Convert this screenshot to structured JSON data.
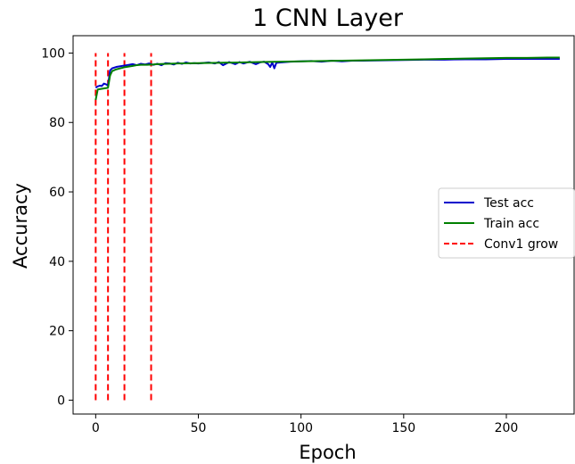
{
  "chart_data": {
    "type": "line",
    "title": "1 CNN Layer",
    "xlabel": "Epoch",
    "ylabel": "Accuracy",
    "xlim": [
      -11,
      233
    ],
    "ylim": [
      -4,
      105
    ],
    "xticks": [
      0,
      50,
      100,
      150,
      200
    ],
    "yticks": [
      0,
      20,
      40,
      60,
      80,
      100
    ],
    "legend_position": "center-right",
    "series": [
      {
        "name": "Test acc",
        "color": "#0000cc",
        "style": "solid",
        "x": [
          0,
          1,
          2,
          3,
          4,
          5,
          6,
          7,
          8,
          10,
          12,
          14,
          16,
          18,
          20,
          22,
          24,
          26,
          28,
          30,
          32,
          34,
          36,
          38,
          40,
          42,
          44,
          46,
          48,
          50,
          55,
          58,
          60,
          62,
          65,
          68,
          70,
          72,
          75,
          78,
          80,
          82,
          84,
          85,
          86,
          87,
          88,
          90,
          95,
          100,
          105,
          110,
          115,
          120,
          125,
          130,
          140,
          150,
          160,
          170,
          180,
          190,
          200,
          210,
          220,
          226
        ],
        "values": [
          90.0,
          90.4,
          90.6,
          90.5,
          91.2,
          91.0,
          90.6,
          95.0,
          95.6,
          96.0,
          96.2,
          96.4,
          96.6,
          96.8,
          96.5,
          96.9,
          96.7,
          97.0,
          96.6,
          96.9,
          96.5,
          97.1,
          97.0,
          96.7,
          97.2,
          96.9,
          97.3,
          97.0,
          97.1,
          97.0,
          97.3,
          97.0,
          97.4,
          96.5,
          97.4,
          96.8,
          97.4,
          97.0,
          97.5,
          96.8,
          97.3,
          97.5,
          96.8,
          96.0,
          97.3,
          95.6,
          97.2,
          97.3,
          97.5,
          97.6,
          97.7,
          97.5,
          97.8,
          97.6,
          97.8,
          97.8,
          97.9,
          98.0,
          98.1,
          98.1,
          98.2,
          98.2,
          98.3,
          98.3,
          98.3,
          98.3
        ]
      },
      {
        "name": "Train acc",
        "color": "#008000",
        "style": "solid",
        "x": [
          0,
          1,
          2,
          4,
          6,
          7,
          8,
          10,
          12,
          14,
          16,
          18,
          20,
          22,
          25,
          28,
          30,
          35,
          40,
          50,
          60,
          70,
          80,
          90,
          100,
          110,
          120,
          130,
          140,
          150,
          160,
          170,
          180,
          190,
          200,
          210,
          220,
          226
        ],
        "values": [
          86.5,
          89.5,
          89.6,
          89.8,
          90.0,
          93.5,
          94.8,
          95.3,
          95.6,
          95.9,
          96.1,
          96.3,
          96.5,
          96.6,
          96.6,
          96.7,
          96.8,
          96.9,
          97.0,
          97.1,
          97.2,
          97.3,
          97.4,
          97.5,
          97.6,
          97.7,
          97.8,
          97.9,
          98.0,
          98.1,
          98.2,
          98.3,
          98.4,
          98.5,
          98.6,
          98.6,
          98.7,
          98.7
        ]
      }
    ],
    "vlines": {
      "name": "Conv1 grow",
      "color": "#ff0000",
      "style": "dashed",
      "x": [
        0,
        6,
        14,
        27
      ],
      "ymin": 0,
      "ymax": 100
    }
  }
}
